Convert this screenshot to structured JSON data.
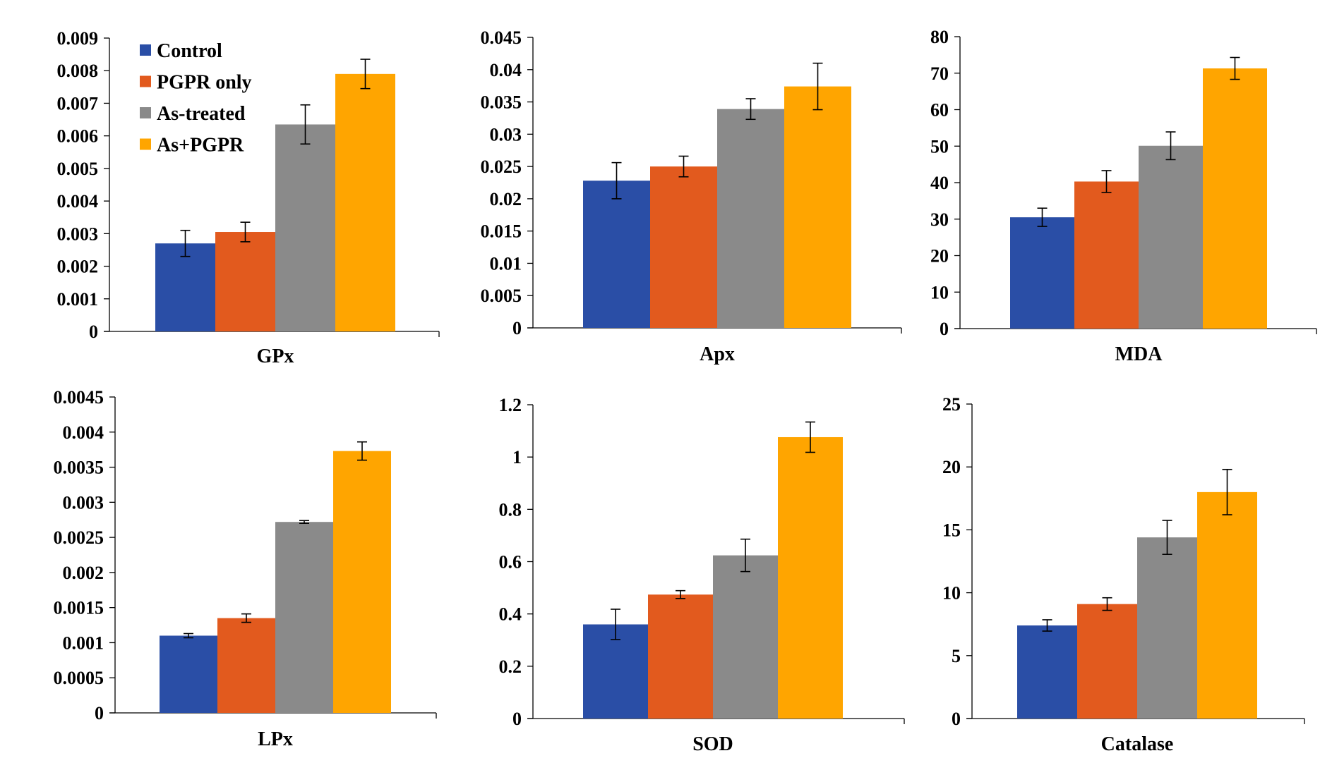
{
  "legend": [
    {
      "label": "Control",
      "color": "#2a4ea6"
    },
    {
      "label": "PGPR only",
      "color": "#e25a1e"
    },
    {
      "label": "As-treated",
      "color": "#8a8a8a"
    },
    {
      "label": "As+PGPR",
      "color": "#ffa500"
    }
  ],
  "chart_data": [
    {
      "type": "bar",
      "xlabel": "GPx",
      "ylim": [
        0,
        0.009
      ],
      "ytick_labels": [
        "0",
        "0.001",
        "0.002",
        "0.003",
        "0.004",
        "0.005",
        "0.006",
        "0.007",
        "0.008",
        "0.009"
      ],
      "series": [
        {
          "name": "Control",
          "values": [
            0.0027
          ],
          "error": [
            0.0004
          ]
        },
        {
          "name": "PGPR only",
          "values": [
            0.00305
          ],
          "error": [
            0.0003
          ]
        },
        {
          "name": "As-treated",
          "values": [
            0.00635
          ],
          "error": [
            0.0006
          ]
        },
        {
          "name": "As+PGPR",
          "values": [
            0.0079
          ],
          "error": [
            0.00045
          ]
        }
      ]
    },
    {
      "type": "bar",
      "xlabel": "Apx",
      "ylim": [
        0,
        0.045
      ],
      "ytick_labels": [
        "0",
        "0.005",
        "0.01",
        "0.015",
        "0.02",
        "0.025",
        "0.03",
        "0.035",
        "0.04",
        "0.045"
      ],
      "series": [
        {
          "name": "Control",
          "values": [
            0.0228
          ],
          "error": [
            0.0028
          ]
        },
        {
          "name": "PGPR only",
          "values": [
            0.025
          ],
          "error": [
            0.0016
          ]
        },
        {
          "name": "As-treated",
          "values": [
            0.0339
          ],
          "error": [
            0.0016
          ]
        },
        {
          "name": "As+PGPR",
          "values": [
            0.0374
          ],
          "error": [
            0.0036
          ]
        }
      ]
    },
    {
      "type": "bar",
      "xlabel": "MDA",
      "ylim": [
        0,
        80
      ],
      "ytick_labels": [
        "0",
        "10",
        "20",
        "30",
        "40",
        "50",
        "60",
        "70",
        "80"
      ],
      "series": [
        {
          "name": "Control",
          "values": [
            30.5
          ],
          "error": [
            2.5
          ]
        },
        {
          "name": "PGPR only",
          "values": [
            40.3
          ],
          "error": [
            3
          ]
        },
        {
          "name": "As-treated",
          "values": [
            50.1
          ],
          "error": [
            3.8
          ]
        },
        {
          "name": "As+PGPR",
          "values": [
            71.3
          ],
          "error": [
            3
          ]
        }
      ]
    },
    {
      "type": "bar",
      "xlabel": "LPx",
      "ylim": [
        0,
        0.0045
      ],
      "ytick_labels": [
        "0",
        "0.0005",
        "0.001",
        "0.0015",
        "0.002",
        "0.0025",
        "0.003",
        "0.0035",
        "0.004",
        "0.0045"
      ],
      "series": [
        {
          "name": "Control",
          "values": [
            0.0011
          ],
          "error": [
            3e-05
          ]
        },
        {
          "name": "PGPR only",
          "values": [
            0.00135
          ],
          "error": [
            6e-05
          ]
        },
        {
          "name": "As-treated",
          "values": [
            0.00272
          ],
          "error": [
            2e-05
          ]
        },
        {
          "name": "As+PGPR",
          "values": [
            0.00373
          ],
          "error": [
            0.00013
          ]
        }
      ]
    },
    {
      "type": "bar",
      "xlabel": "SOD",
      "ylim": [
        0,
        1.2
      ],
      "ytick_labels": [
        "0",
        "0.2",
        "0.4",
        "0.6",
        "0.8",
        "1",
        "1.2"
      ],
      "series": [
        {
          "name": "Control",
          "values": [
            0.36
          ],
          "error": [
            0.058
          ]
        },
        {
          "name": "PGPR only",
          "values": [
            0.474
          ],
          "error": [
            0.015
          ]
        },
        {
          "name": "As-treated",
          "values": [
            0.624
          ],
          "error": [
            0.062
          ]
        },
        {
          "name": "As+PGPR",
          "values": [
            1.076
          ],
          "error": [
            0.058
          ]
        }
      ]
    },
    {
      "type": "bar",
      "xlabel": "Catalase",
      "ylim": [
        0,
        25
      ],
      "ytick_labels": [
        "0",
        "5",
        "10",
        "15",
        "20",
        "25"
      ],
      "series": [
        {
          "name": "Control",
          "values": [
            7.4
          ],
          "error": [
            0.45
          ]
        },
        {
          "name": "PGPR only",
          "values": [
            9.1
          ],
          "error": [
            0.5
          ]
        },
        {
          "name": "As-treated",
          "values": [
            14.4
          ],
          "error": [
            1.35
          ]
        },
        {
          "name": "As+PGPR",
          "values": [
            18
          ],
          "error": [
            1.8
          ]
        }
      ]
    }
  ]
}
